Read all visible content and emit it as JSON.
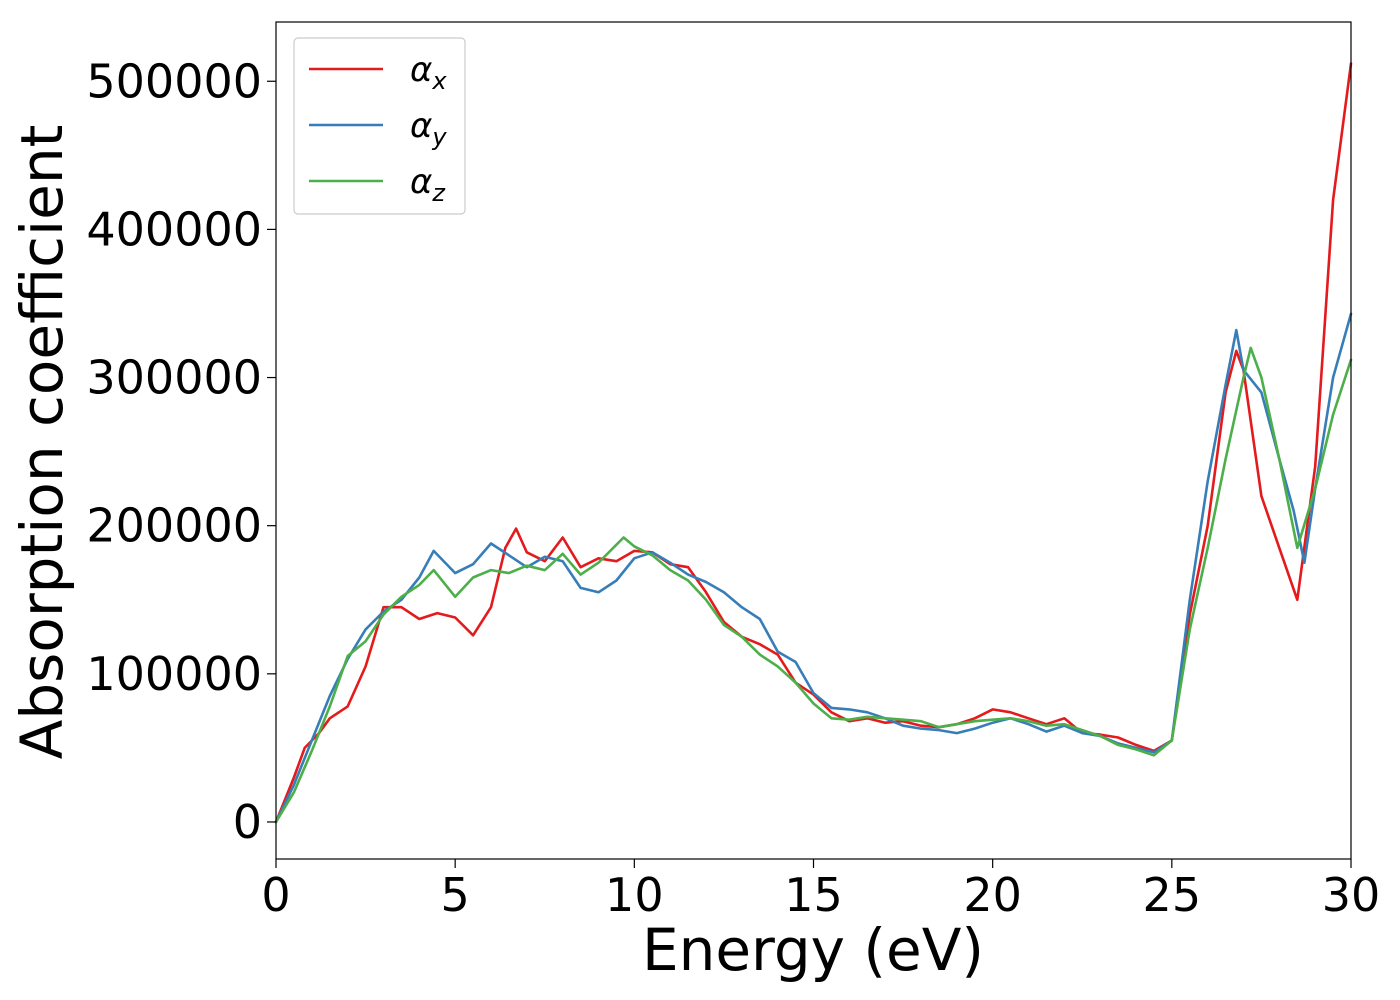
{
  "chart_data": {
    "type": "line",
    "title": "",
    "xlabel": "Energy (eV)",
    "ylabel": "Absorption coefficient",
    "xlim": [
      0,
      30
    ],
    "ylim": [
      -25000,
      540000
    ],
    "xticks": [
      0,
      5,
      10,
      15,
      20,
      25,
      30
    ],
    "xtick_labels": [
      "0",
      "5",
      "10",
      "15",
      "20",
      "25",
      "30"
    ],
    "yticks": [
      0,
      100000,
      200000,
      300000,
      400000,
      500000
    ],
    "ytick_labels": [
      "0",
      "100000",
      "200000",
      "300000",
      "400000",
      "500000"
    ],
    "grid": false,
    "legend_position": "top-left",
    "series": [
      {
        "name": "α_x",
        "symbol": "α",
        "subscript": "x",
        "color": "#e41a1c",
        "x": [
          0,
          0.5,
          0.8,
          1.2,
          1.5,
          2.0,
          2.5,
          3.0,
          3.5,
          4.0,
          4.5,
          5.0,
          5.5,
          6.0,
          6.4,
          6.7,
          7.0,
          7.5,
          8.0,
          8.5,
          9.0,
          9.5,
          10.0,
          10.5,
          11.0,
          11.5,
          12.0,
          12.5,
          13.0,
          13.5,
          14.0,
          14.5,
          15.0,
          15.5,
          16.0,
          16.5,
          17.0,
          17.5,
          18.0,
          18.5,
          19.0,
          19.5,
          20.0,
          20.5,
          21.0,
          21.5,
          22.0,
          22.5,
          23.0,
          23.5,
          24.0,
          24.5,
          25.0,
          25.5,
          26.0,
          26.5,
          26.8,
          27.0,
          27.5,
          28.0,
          28.5,
          29.0,
          29.5,
          30.0
        ],
        "values": [
          0,
          30000,
          50000,
          60000,
          70000,
          78000,
          105000,
          145000,
          145000,
          137000,
          141000,
          138000,
          126000,
          145000,
          185000,
          198000,
          182000,
          176000,
          192000,
          172000,
          178000,
          176000,
          183000,
          182000,
          174000,
          172000,
          155000,
          135000,
          125000,
          120000,
          113000,
          94000,
          86000,
          74000,
          68000,
          70000,
          67000,
          68000,
          65000,
          64000,
          66000,
          70000,
          76000,
          74000,
          70000,
          66000,
          70000,
          60000,
          59000,
          57000,
          52000,
          48000,
          55000,
          140000,
          200000,
          290000,
          318000,
          305000,
          220000,
          185000,
          150000,
          240000,
          420000,
          512000
        ]
      },
      {
        "name": "α_y",
        "symbol": "α",
        "subscript": "y",
        "color": "#377eb8",
        "x": [
          0,
          0.5,
          1.0,
          1.5,
          2.0,
          2.5,
          3.0,
          3.5,
          4.0,
          4.4,
          5.0,
          5.5,
          6.0,
          6.5,
          7.0,
          7.5,
          8.0,
          8.5,
          9.0,
          9.5,
          10.0,
          10.5,
          11.0,
          11.5,
          12.0,
          12.5,
          13.0,
          13.5,
          14.0,
          14.5,
          15.0,
          15.5,
          16.0,
          16.5,
          17.0,
          17.5,
          18.0,
          18.5,
          19.0,
          19.5,
          20.0,
          20.5,
          21.0,
          21.5,
          22.0,
          22.5,
          23.0,
          23.5,
          24.0,
          24.5,
          25.0,
          25.5,
          26.0,
          26.5,
          26.8,
          27.0,
          27.5,
          28.0,
          28.4,
          28.7,
          29.0,
          29.5,
          30.0
        ],
        "values": [
          0,
          25000,
          55000,
          85000,
          110000,
          130000,
          142000,
          150000,
          165000,
          183000,
          168000,
          174000,
          188000,
          180000,
          172000,
          179000,
          176000,
          158000,
          155000,
          163000,
          178000,
          182000,
          175000,
          167000,
          162000,
          155000,
          145000,
          137000,
          115000,
          108000,
          87000,
          77000,
          76000,
          74000,
          70000,
          65000,
          63000,
          62000,
          60000,
          63000,
          67000,
          70000,
          66000,
          61000,
          65000,
          60000,
          58000,
          53000,
          50000,
          47000,
          55000,
          150000,
          230000,
          295000,
          332000,
          305000,
          290000,
          245000,
          210000,
          175000,
          225000,
          300000,
          343000
        ]
      },
      {
        "name": "α_z",
        "symbol": "α",
        "subscript": "z",
        "color": "#4daf4a",
        "x": [
          0,
          0.5,
          1.0,
          1.5,
          2.0,
          2.5,
          3.0,
          3.5,
          4.0,
          4.4,
          5.0,
          5.5,
          6.0,
          6.5,
          7.0,
          7.5,
          8.0,
          8.5,
          9.0,
          9.7,
          10.0,
          10.5,
          11.0,
          11.5,
          12.0,
          12.5,
          13.0,
          13.5,
          14.0,
          14.5,
          15.0,
          15.5,
          16.0,
          16.5,
          17.0,
          17.5,
          18.0,
          18.5,
          19.0,
          19.5,
          20.0,
          20.5,
          21.0,
          21.5,
          22.0,
          22.5,
          23.0,
          23.5,
          24.0,
          24.5,
          25.0,
          25.5,
          26.0,
          26.5,
          27.0,
          27.2,
          27.5,
          28.0,
          28.5,
          29.0,
          29.5,
          30.0
        ],
        "values": [
          0,
          20000,
          48000,
          78000,
          112000,
          122000,
          140000,
          152000,
          160000,
          170000,
          152000,
          165000,
          170000,
          168000,
          173000,
          170000,
          181000,
          167000,
          175000,
          192000,
          186000,
          180000,
          170000,
          163000,
          150000,
          133000,
          125000,
          113000,
          105000,
          94000,
          80000,
          70000,
          69000,
          71000,
          70000,
          69000,
          68000,
          64000,
          66000,
          68000,
          69000,
          70000,
          68000,
          65000,
          66000,
          62000,
          58000,
          52000,
          49000,
          45000,
          55000,
          130000,
          185000,
          245000,
          300000,
          320000,
          300000,
          245000,
          185000,
          225000,
          275000,
          312000
        ]
      }
    ]
  }
}
